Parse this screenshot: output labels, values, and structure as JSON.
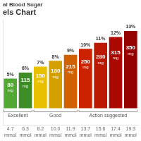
{
  "chart_data": {
    "type": "bar",
    "title": "al Blood Sugar",
    "subtitle": "els Chart",
    "categories": [
      "4.7",
      "6.3",
      "8.2",
      "10.0",
      "11.9",
      "13.7",
      "15.6",
      "17.4",
      "19.3"
    ],
    "category_unit": "mmol",
    "values": [
      5,
      6,
      7,
      8,
      9,
      10,
      11,
      12,
      13
    ],
    "value_labels": [
      "5%",
      "6%",
      "7%",
      "8%",
      "9%",
      "10%",
      "11%",
      "12%",
      "13%"
    ],
    "data_labels": true,
    "colors": [
      "#52a832",
      "#3d8c25",
      "#e8c000",
      "#d4a000",
      "#d06000",
      "#cc2200",
      "#bb1800",
      "#aa0800",
      "#960000"
    ],
    "inner_labels": [
      "80",
      "115",
      "150",
      "180",
      "215",
      "250",
      "280",
      "315",
      "350"
    ],
    "inner_unit": "mg",
    "groups": [
      {
        "text": "Excellent",
        "categories": [
          "4.7",
          "6.3"
        ]
      },
      {
        "text": "Good",
        "categories": [
          "8.2",
          "10.0",
          "11.9"
        ]
      },
      {
        "text": "Action suggested",
        "categories": [
          "13.7",
          "15.6",
          "17.4",
          "19.3"
        ]
      }
    ],
    "ylim": [
      -2.8,
      14.8
    ],
    "tick_labels": "x",
    "grid": false
  }
}
